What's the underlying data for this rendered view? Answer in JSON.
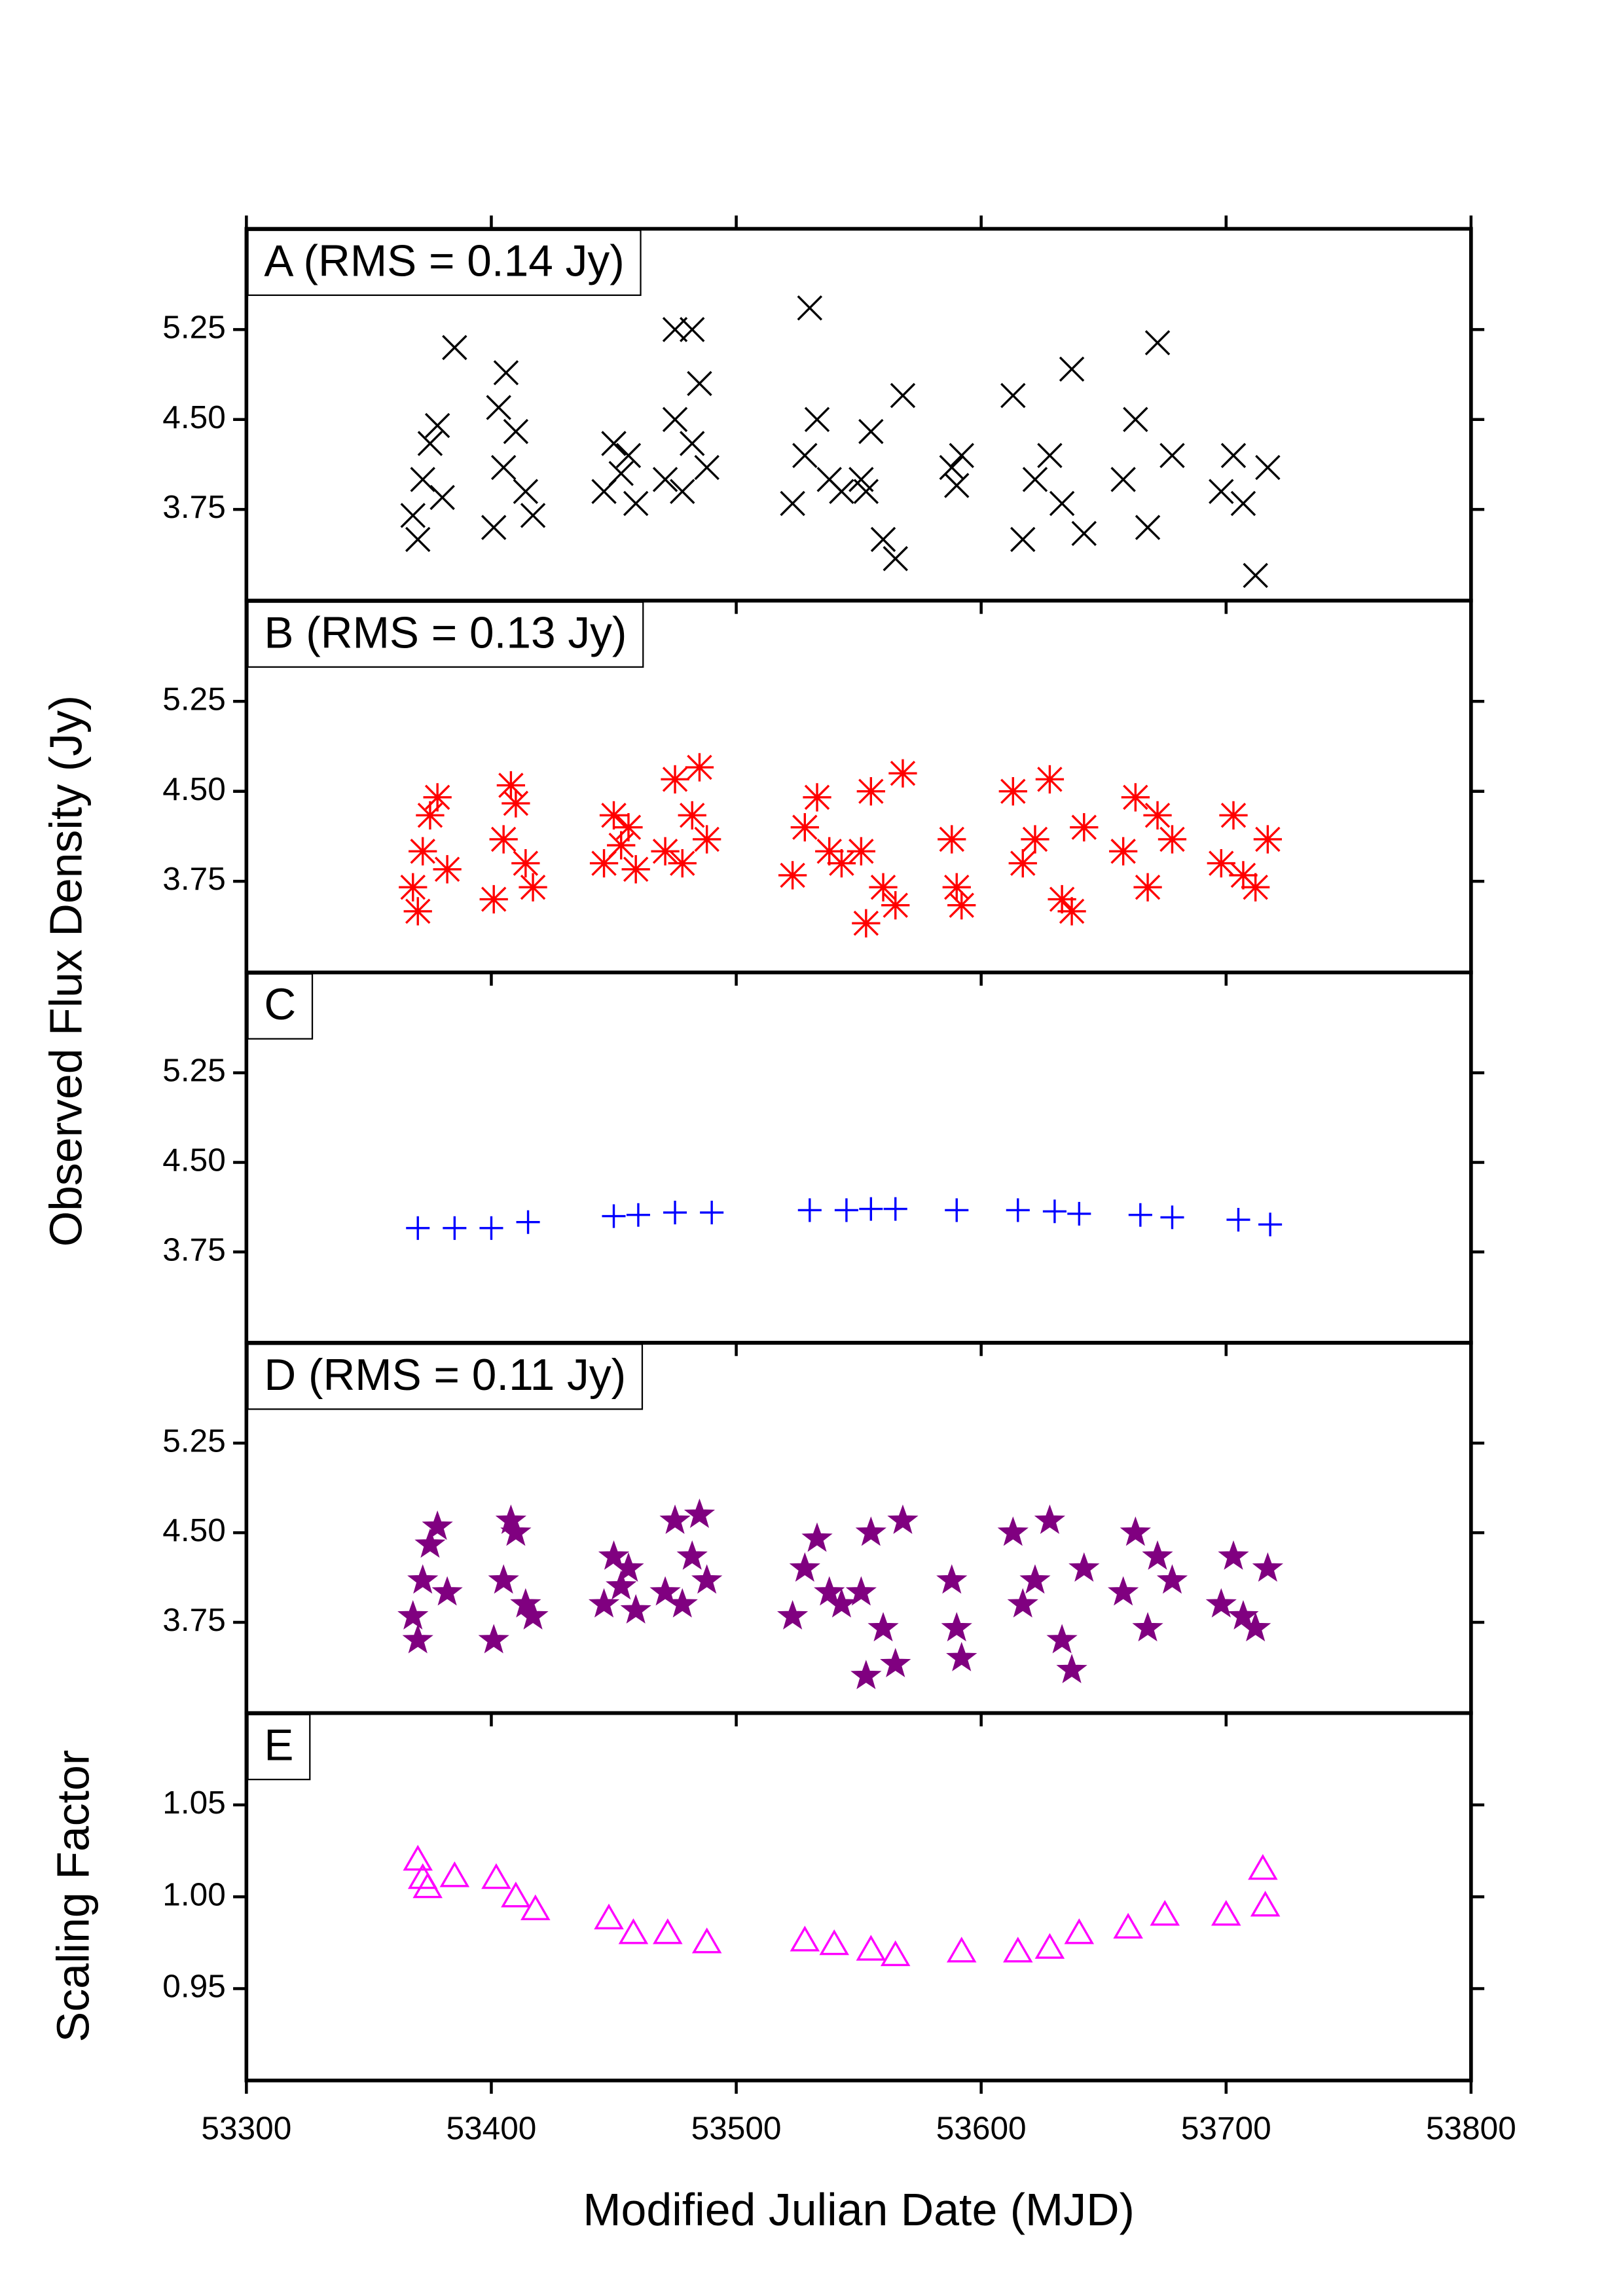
{
  "chart_data": [
    {
      "type": "scatter",
      "title": "A (RMS = 0.14 Jy)",
      "ylabel": "Observed Flux Density (Jy)",
      "marker": "x",
      "color": "#000000",
      "xlim": [
        53300,
        53800
      ],
      "xticks": [
        53300,
        53400,
        53500,
        53600,
        53700,
        53800
      ],
      "ylim": [
        2.99,
        6.09
      ],
      "yticks": [
        3.75,
        {
          "value": 4.5,
          "label": "4.50"
        },
        5.25
      ],
      "x": [
        53368,
        53372,
        53375,
        53370,
        53378,
        53380,
        53385,
        53401,
        53405,
        53410,
        53414,
        53417,
        53403,
        53406,
        53446,
        53450,
        53453,
        53456,
        53459,
        53471,
        53475,
        53478,
        53482,
        53485,
        53488,
        53475,
        53482,
        53523,
        53528,
        53533,
        53538,
        53543,
        53530,
        53551,
        53555,
        53560,
        53565,
        53568,
        53553,
        53588,
        53590,
        53592,
        53613,
        53617,
        53622,
        53628,
        53633,
        53637,
        53642,
        53658,
        53663,
        53668,
        53672,
        53678,
        53698,
        53703,
        53707,
        53712,
        53717
      ],
      "y": [
        3.7,
        4.0,
        4.3,
        3.5,
        4.45,
        3.85,
        5.1,
        3.6,
        4.1,
        4.4,
        3.9,
        3.7,
        4.6,
        4.89,
        3.9,
        4.3,
        4.05,
        4.2,
        3.8,
        4.0,
        4.5,
        3.9,
        4.3,
        4.8,
        4.1,
        5.25,
        5.25,
        3.8,
        4.2,
        4.5,
        4.0,
        3.9,
        5.43,
        4.0,
        4.4,
        3.5,
        3.34,
        4.7,
        3.9,
        4.1,
        3.95,
        4.2,
        4.7,
        3.5,
        4.0,
        4.2,
        3.8,
        4.92,
        3.55,
        4.0,
        4.5,
        3.6,
        5.14,
        4.2,
        3.9,
        4.2,
        3.8,
        3.2,
        4.1
      ]
    },
    {
      "type": "scatter",
      "title": "B (RMS = 0.13 Jy)",
      "marker": "asterisk",
      "color": "#ff0000",
      "xlim": [
        53300,
        53800
      ],
      "xticks": [
        53300,
        53400,
        53500,
        53600,
        53700,
        53800
      ],
      "ylim": [
        2.99,
        6.09
      ],
      "yticks": [
        3.75,
        {
          "value": 4.5,
          "label": "4.50"
        },
        5.25
      ],
      "x": [
        53368,
        53372,
        53375,
        53370,
        53378,
        53382,
        53401,
        53405,
        53410,
        53414,
        53417,
        53408,
        53446,
        53450,
        53453,
        53456,
        53459,
        53471,
        53475,
        53478,
        53482,
        53485,
        53488,
        53523,
        53528,
        53533,
        53538,
        53543,
        53551,
        53555,
        53560,
        53565,
        53568,
        53553,
        53588,
        53590,
        53592,
        53613,
        53617,
        53622,
        53628,
        53633,
        53637,
        53642,
        53658,
        53663,
        53668,
        53672,
        53678,
        53698,
        53703,
        53707,
        53712,
        53717
      ],
      "y": [
        3.7,
        4.0,
        4.3,
        3.5,
        4.45,
        3.85,
        3.6,
        4.1,
        4.4,
        3.9,
        3.7,
        4.55,
        3.9,
        4.3,
        4.05,
        4.2,
        3.85,
        4.0,
        4.6,
        3.9,
        4.3,
        4.7,
        4.1,
        3.8,
        4.2,
        4.45,
        4.0,
        3.9,
        4.0,
        4.5,
        3.7,
        3.55,
        4.65,
        3.4,
        4.1,
        3.7,
        3.55,
        4.5,
        3.9,
        4.1,
        4.6,
        3.6,
        3.5,
        4.2,
        4.0,
        4.45,
        3.7,
        4.3,
        4.1,
        3.9,
        4.3,
        3.8,
        3.7,
        4.1
      ]
    },
    {
      "type": "scatter",
      "title": "C",
      "marker": "plus",
      "color": "#0000ff",
      "xlim": [
        53300,
        53800
      ],
      "xticks": [
        53300,
        53400,
        53500,
        53600,
        53700,
        53800
      ],
      "ylim": [
        2.99,
        6.09
      ],
      "yticks": [
        3.75,
        {
          "value": 4.5,
          "label": "4.50"
        },
        5.25
      ],
      "x": [
        53370,
        53385,
        53400,
        53415,
        53450,
        53460,
        53475,
        53490,
        53530,
        53545,
        53555,
        53565,
        53590,
        53615,
        53630,
        53640,
        53665,
        53678,
        53705,
        53718
      ],
      "y": [
        3.95,
        3.95,
        3.95,
        4.0,
        4.05,
        4.06,
        4.08,
        4.08,
        4.1,
        4.1,
        4.11,
        4.11,
        4.1,
        4.1,
        4.09,
        4.07,
        4.06,
        4.04,
        4.02,
        3.98
      ]
    },
    {
      "type": "scatter",
      "title": "D (RMS = 0.11 Jy)",
      "marker": "star",
      "color": "#800080",
      "xlim": [
        53300,
        53800
      ],
      "xticks": [
        53300,
        53400,
        53500,
        53600,
        53700,
        53800
      ],
      "ylim": [
        2.99,
        6.09
      ],
      "yticks": [
        3.75,
        {
          "value": 4.5,
          "label": "4.50"
        },
        5.25
      ],
      "x": [
        53368,
        53372,
        53375,
        53370,
        53378,
        53382,
        53401,
        53405,
        53410,
        53414,
        53417,
        53408,
        53446,
        53450,
        53453,
        53456,
        53459,
        53471,
        53475,
        53478,
        53482,
        53485,
        53488,
        53523,
        53528,
        53533,
        53538,
        53543,
        53551,
        53555,
        53560,
        53565,
        53568,
        53553,
        53588,
        53590,
        53592,
        53613,
        53617,
        53622,
        53628,
        53633,
        53637,
        53642,
        53658,
        53663,
        53668,
        53672,
        53678,
        53698,
        53703,
        53707,
        53712,
        53717
      ],
      "y": [
        3.8,
        4.1,
        4.4,
        3.6,
        4.55,
        4.0,
        3.6,
        4.1,
        4.5,
        3.9,
        3.8,
        4.6,
        3.9,
        4.3,
        4.05,
        4.2,
        3.85,
        4.0,
        4.6,
        3.9,
        4.3,
        4.65,
        4.1,
        3.8,
        4.2,
        4.45,
        4.0,
        3.9,
        4.0,
        4.5,
        3.7,
        3.4,
        4.6,
        3.3,
        4.1,
        3.7,
        3.45,
        4.5,
        3.9,
        4.1,
        4.6,
        3.6,
        3.35,
        4.2,
        4.0,
        4.5,
        3.7,
        4.3,
        4.1,
        3.9,
        4.3,
        3.8,
        3.7,
        4.2
      ]
    },
    {
      "type": "scatter",
      "title": "E",
      "ylabel": "Scaling Factor",
      "xlabel": "Modified Julian Date (MJD)",
      "marker": "triangle",
      "color": "#ff00ff",
      "xlim": [
        53300,
        53800
      ],
      "xticks": [
        53300,
        53400,
        53500,
        53600,
        53700,
        53800
      ],
      "ylim": [
        0.9,
        1.1
      ],
      "yticks": [
        0.95,
        {
          "value": 1.0,
          "label": "1.00"
        },
        1.05
      ],
      "x": [
        53370,
        53372,
        53374,
        53385,
        53402,
        53410,
        53418,
        53448,
        53458,
        53472,
        53488,
        53528,
        53540,
        53555,
        53565,
        53592,
        53615,
        53628,
        53640,
        53660,
        53675,
        53700,
        53715,
        53716
      ],
      "y": [
        1.02,
        1.01,
        1.005,
        1.011,
        1.01,
        1.0,
        0.993,
        0.988,
        0.98,
        0.98,
        0.975,
        0.976,
        0.974,
        0.971,
        0.968,
        0.97,
        0.97,
        0.972,
        0.98,
        0.983,
        0.99,
        0.99,
        1.015,
        0.995
      ]
    }
  ]
}
